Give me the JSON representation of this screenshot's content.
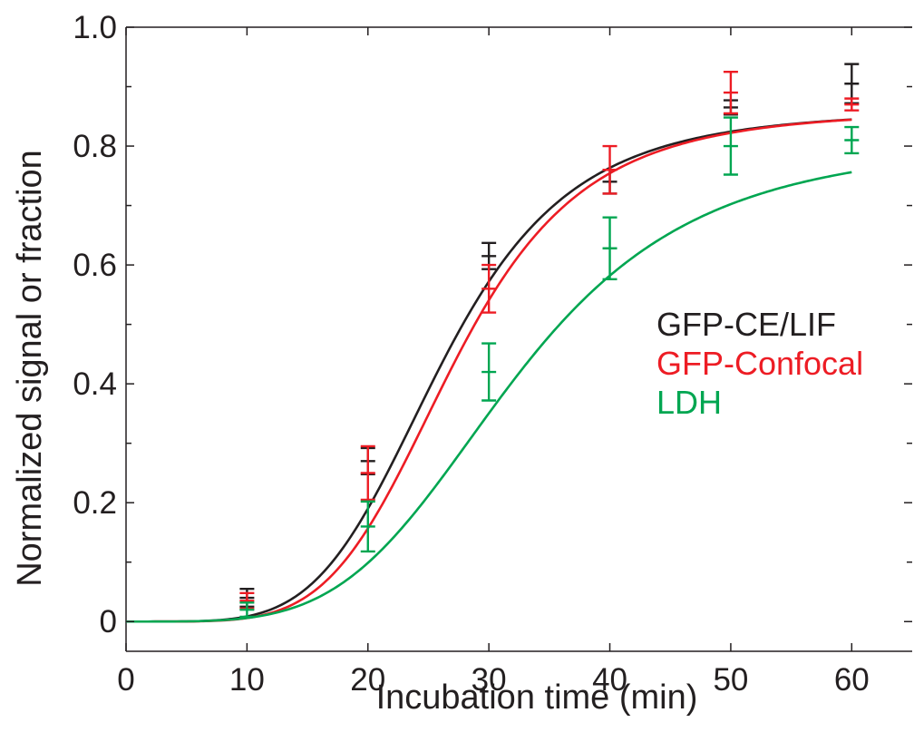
{
  "chart_data": {
    "type": "line",
    "title": "",
    "xlabel": "Incubation time (min)",
    "ylabel": "Normalized signal or fraction",
    "xlim": [
      0,
      65
    ],
    "ylim": [
      -0.05,
      1.0
    ],
    "xticks": [
      "0",
      "10",
      "20",
      "30",
      "40",
      "50",
      "60"
    ],
    "yticks": [
      "0",
      "0.2",
      "0.4",
      "0.6",
      "0.8",
      "1.0"
    ],
    "grid": false,
    "legend_position": "center-right",
    "series": [
      {
        "name": "GFP-CE/LIF",
        "color": "#231f20",
        "fit": {
          "max": 0.86,
          "t_half": 26,
          "hill": 4.8
        },
        "x": [
          10,
          20,
          30,
          40,
          50,
          60
        ],
        "y": [
          0.04,
          0.27,
          0.615,
          0.74,
          0.865,
          0.905
        ],
        "err": [
          0.015,
          0.022,
          0.022,
          0.02,
          0.012,
          0.033
        ]
      },
      {
        "name": "GFP-Confocal",
        "color": "#ed1c24",
        "fit": {
          "max": 0.86,
          "t_half": 27,
          "hill": 5.0
        },
        "x": [
          10,
          20,
          30,
          40,
          50,
          60
        ],
        "y": [
          0.035,
          0.25,
          0.56,
          0.76,
          0.89,
          0.87
        ],
        "err": [
          0.013,
          0.045,
          0.04,
          0.04,
          0.035,
          0.01
        ]
      },
      {
        "name": "LDH",
        "color": "#00a651",
        "fit": {
          "max": 0.81,
          "t_half": 32,
          "hill": 4.2
        },
        "x": [
          10,
          20,
          30,
          40,
          50,
          60
        ],
        "y": [
          0.02,
          0.16,
          0.42,
          0.628,
          0.8,
          0.81
        ],
        "err": [
          0.012,
          0.042,
          0.048,
          0.052,
          0.048,
          0.022
        ]
      }
    ]
  }
}
